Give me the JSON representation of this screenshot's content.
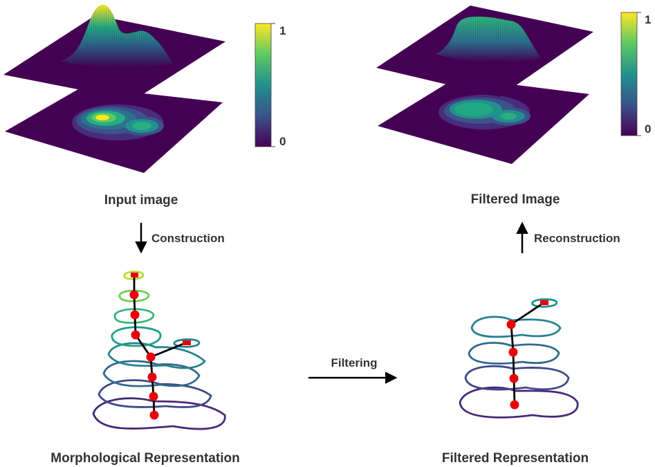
{
  "colors": {
    "plane": "#440154",
    "arrow": "#000000",
    "node": "#e8000b",
    "edge": "#000000",
    "text": "#333333",
    "viridis": [
      "#440154",
      "#3b528b",
      "#21918c",
      "#5ec962",
      "#fde725"
    ]
  },
  "labels": {
    "input_image": "Input image",
    "filtered_image": "Filtered Image",
    "construction": "Construction",
    "reconstruction": "Reconstruction",
    "filtering": "Filtering",
    "morph_rep": "Morphological Representation",
    "filtered_rep": "Filtered Representation"
  },
  "colorbar_left": {
    "max_label": "1",
    "min_label": "0"
  },
  "colorbar_right": {
    "max_label": "1",
    "min_label": "0"
  }
}
